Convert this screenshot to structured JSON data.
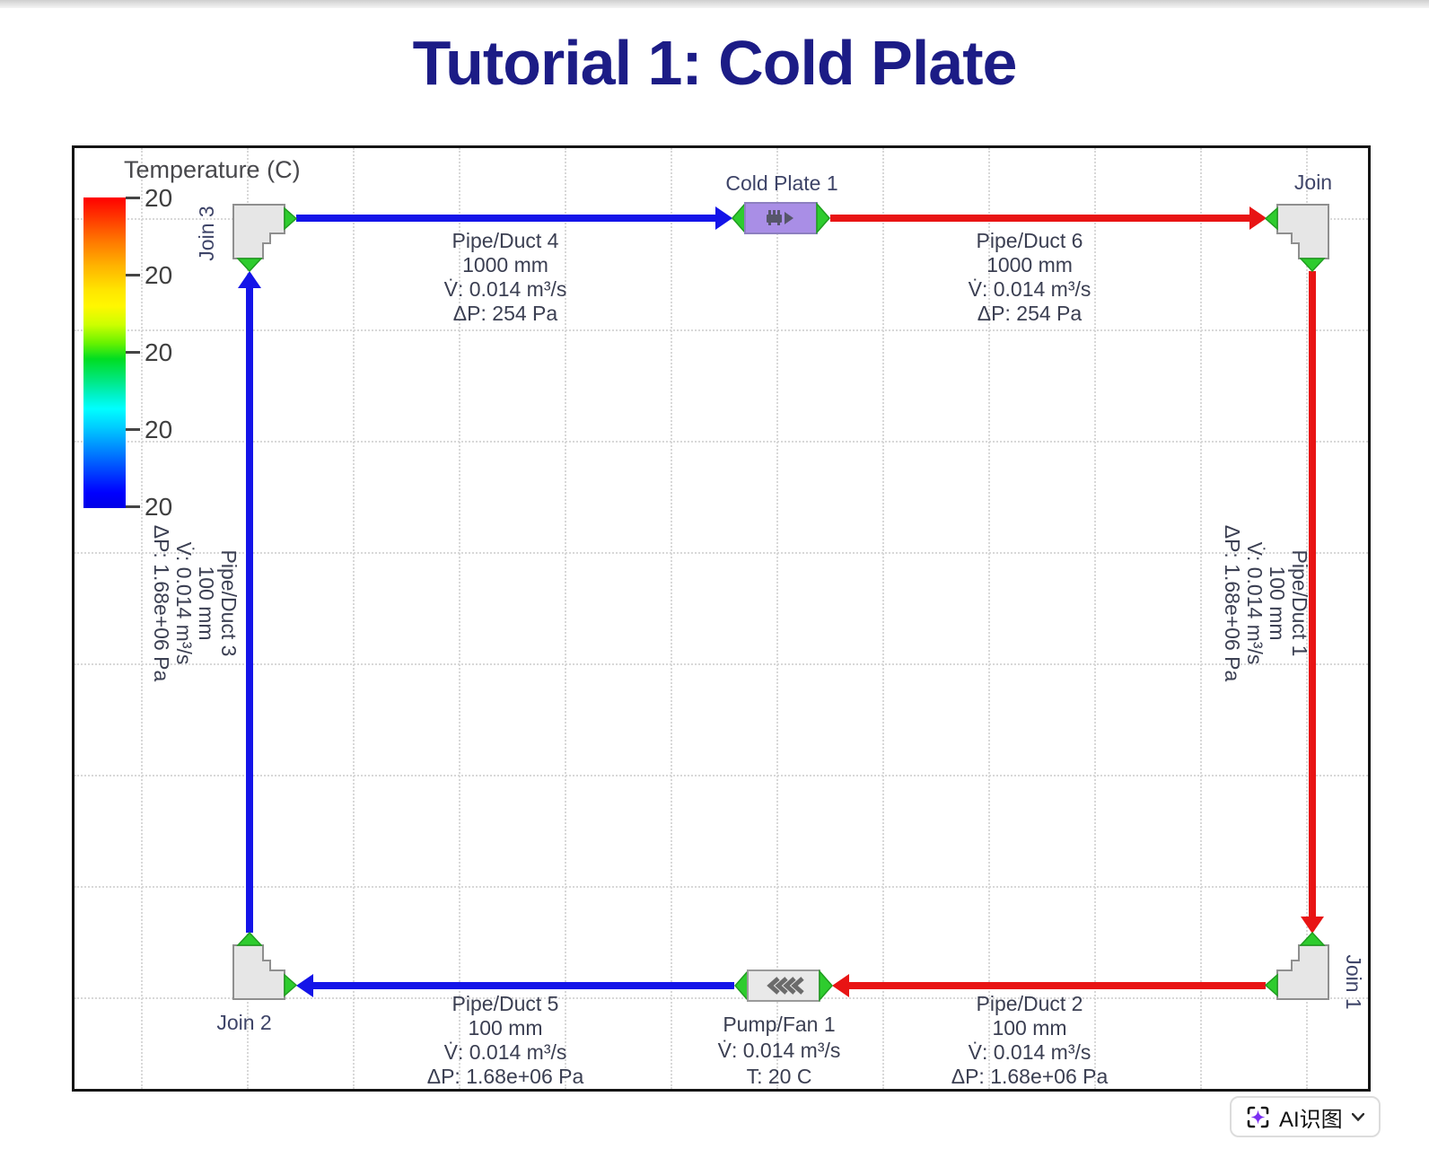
{
  "page": {
    "title": "Tutorial 1: Cold Plate"
  },
  "legend": {
    "title": "Temperature (C)",
    "ticks": [
      "20",
      "20",
      "20",
      "20",
      "20"
    ]
  },
  "components": {
    "cold_plate": {
      "label": "Cold Plate 1"
    },
    "pump": {
      "label": "Pump/Fan 1",
      "flow": "V̇: 0.014 m³/s",
      "temp": "T: 20 C"
    },
    "join_top_left": {
      "label": "Join 3"
    },
    "join_top_right": {
      "label": "Join"
    },
    "join_bottom_right": {
      "label": "Join 1"
    },
    "join_bottom_left": {
      "label": "Join 2"
    }
  },
  "pipes": {
    "duct4": {
      "name": "Pipe/Duct 4",
      "size": "1000 mm",
      "flow": "V̇: 0.014 m³/s",
      "dp": "ΔP: 254 Pa"
    },
    "duct6": {
      "name": "Pipe/Duct 6",
      "size": "1000 mm",
      "flow": "V̇: 0.014 m³/s",
      "dp": "ΔP: 254 Pa"
    },
    "duct1": {
      "name": "Pipe/Duct 1",
      "size": "100 mm",
      "flow": "V̇: 0.014 m³/s",
      "dp": "ΔP: 1.68e+06 Pa"
    },
    "duct2": {
      "name": "Pipe/Duct 2",
      "size": "100 mm",
      "flow": "V̇: 0.014 m³/s",
      "dp": "ΔP: 1.68e+06 Pa"
    },
    "duct5": {
      "name": "Pipe/Duct 5",
      "size": "100 mm",
      "flow": "V̇: 0.014 m³/s",
      "dp": "ΔP: 1.68e+06 Pa"
    },
    "duct3": {
      "name": "Pipe/Duct 3",
      "size": "100 mm",
      "flow": "V̇: 0.014 m³/s",
      "dp": "ΔP: 1.68e+06 Pa"
    }
  },
  "colors": {
    "hot_pipe": "#e81414",
    "cold_pipe": "#1414e8",
    "port_green": "#2ecc2e",
    "cold_plate_purple": "#a98ee6",
    "title_navy": "#1c1c86",
    "ai_icon_purple": "#7b2ff2"
  },
  "ai_button": {
    "label": "AI识图"
  }
}
